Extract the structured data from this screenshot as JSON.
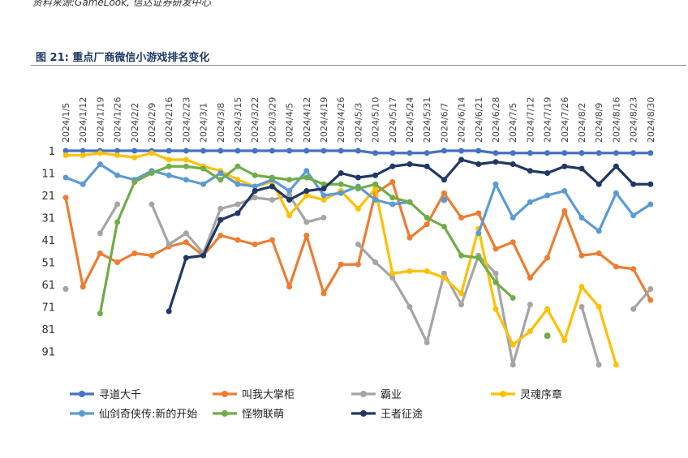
{
  "header": {
    "source_line": "资料来源:GameLook, 信达证券研发中心",
    "figure_title": "图 21:  重点厂商微信小游戏排名变化"
  },
  "chart_data": {
    "type": "line",
    "title": "",
    "xlabel": "",
    "ylabel": "",
    "y_reversed": true,
    "ylim": [
      1,
      101
    ],
    "yticks": [
      1,
      11,
      21,
      31,
      41,
      51,
      61,
      71,
      81,
      91
    ],
    "legend_position": "bottom",
    "grid": false,
    "categories": [
      "2024/1/5",
      "2024/1/12",
      "2024/1/19",
      "2024/1/26",
      "2024/2/2",
      "2024/2/9",
      "2024/2/16",
      "2024/2/23",
      "2024/3/1",
      "2024/3/8",
      "2024/3/15",
      "2024/3/22",
      "2024/3/29",
      "2024/4/5",
      "2024/4/12",
      "2024/4/19",
      "2024/4/26",
      "2024/5/3",
      "2024/5/10",
      "2024/5/17",
      "2024/5/24",
      "2024/5/31",
      "2024/6/7",
      "2024/6/14",
      "2024/6/21",
      "2024/6/28",
      "2024/7/5",
      "2024/7/12",
      "2024/7/19",
      "2024/7/26",
      "2024/8/2",
      "2024/8/9",
      "2024/8/16",
      "2024/8/23",
      "2024/8/30"
    ],
    "series": [
      {
        "name": "寻道大千",
        "color": "#4472c4",
        "values": [
          1,
          1,
          1,
          1,
          1,
          1,
          1,
          1,
          1,
          1,
          1,
          1,
          1,
          1,
          1,
          1,
          1,
          1,
          2,
          2,
          2,
          2,
          1,
          1,
          1,
          2,
          2,
          2,
          2,
          2,
          2,
          2,
          2,
          2,
          2
        ]
      },
      {
        "name": "叫我大掌柜",
        "color": "#ed7d31",
        "values": [
          22,
          62,
          47,
          51,
          47,
          48,
          44,
          42,
          48,
          39,
          41,
          43,
          41,
          62,
          39,
          65,
          52,
          52,
          20,
          15,
          40,
          34,
          20,
          31,
          29,
          45,
          42,
          58,
          49,
          28,
          48,
          47,
          53,
          54,
          68
        ]
      },
      {
        "name": "霸业",
        "color": "#a5a5a5",
        "values": [
          63,
          null,
          38,
          25,
          null,
          25,
          43,
          38,
          47,
          27,
          25,
          22,
          23,
          21,
          33,
          31,
          null,
          43,
          51,
          58,
          71,
          87,
          56,
          70,
          48,
          56,
          97,
          70,
          null,
          null,
          71,
          97,
          null,
          72,
          63
        ]
      },
      {
        "name": "灵魂序章",
        "color": "#ffc000",
        "values": [
          3,
          3,
          2,
          3,
          4,
          2,
          5,
          5,
          8,
          10,
          14,
          17,
          15,
          30,
          21,
          23,
          19,
          27,
          18,
          56,
          55,
          55,
          58,
          65,
          36,
          72,
          88,
          82,
          72,
          86,
          62,
          71,
          97,
          null,
          null
        ]
      },
      {
        "name": "仙剑奇侠传:新的开始",
        "color": "#5b9bd5",
        "values": [
          13,
          16,
          7,
          12,
          14,
          10,
          12,
          14,
          16,
          11,
          16,
          17,
          14,
          19,
          10,
          21,
          20,
          17,
          23,
          25,
          24,
          null,
          23,
          null,
          38,
          16,
          31,
          24,
          21,
          19,
          31,
          37,
          20,
          30,
          25
        ]
      },
      {
        "name": "怪物联萌",
        "color": "#70ad47",
        "values": [
          null,
          null,
          74,
          33,
          15,
          11,
          8,
          8,
          9,
          14,
          8,
          12,
          13,
          14,
          13,
          16,
          16,
          18,
          16,
          22,
          24,
          31,
          35,
          48,
          49,
          60,
          67,
          null,
          null,
          null,
          null,
          null,
          null,
          null,
          null
        ]
      },
      {
        "name": "王者征途",
        "color": "#203864",
        "values": [
          null,
          null,
          null,
          null,
          null,
          null,
          73,
          49,
          48,
          32,
          29,
          19,
          17,
          23,
          19,
          18,
          11,
          13,
          12,
          8,
          7,
          8,
          14,
          5,
          7,
          6,
          7,
          10,
          11,
          8,
          9,
          16,
          8,
          16,
          16
        ]
      }
    ],
    "extra_points": [
      {
        "series": "仙剑奇侠传:新的开始",
        "category": "2024/6/7",
        "value": 23
      },
      {
        "series": "怪物联萌",
        "category": "2024/7/19",
        "value": 84
      }
    ]
  }
}
